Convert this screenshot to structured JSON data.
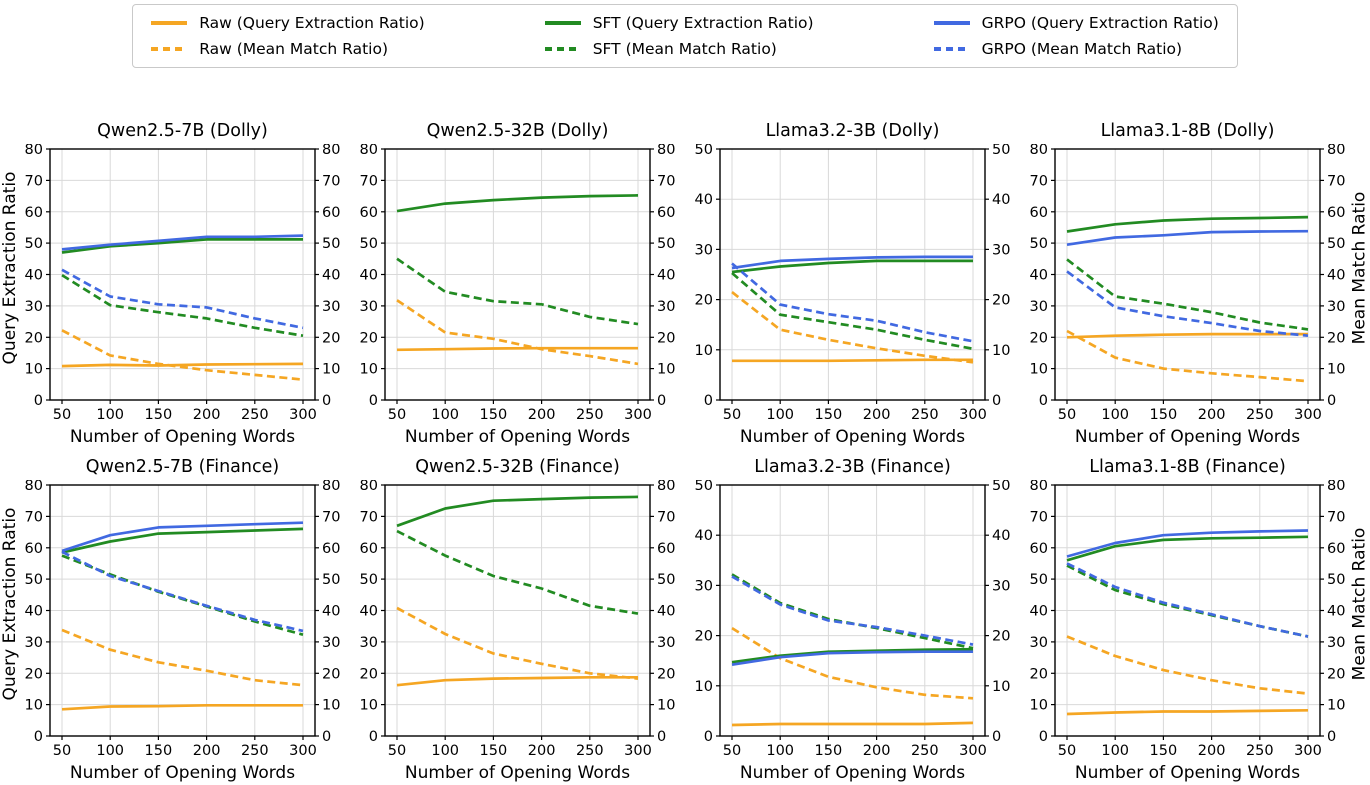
{
  "legend": {
    "entries": [
      {
        "label": "Raw (Query Extraction Ratio)",
        "color": "#F5A623",
        "style": "solid"
      },
      {
        "label": "Raw (Mean Match Ratio)",
        "color": "#F5A623",
        "style": "dashed"
      },
      {
        "label": "SFT (Query Extraction Ratio)",
        "color": "#228B22",
        "style": "solid"
      },
      {
        "label": "SFT (Mean Match Ratio)",
        "color": "#228B22",
        "style": "dashed"
      },
      {
        "label": "GRPO (Query Extraction Ratio)",
        "color": "#4169E1",
        "style": "solid"
      },
      {
        "label": "GRPO (Mean Match Ratio)",
        "color": "#4169E1",
        "style": "dashed"
      }
    ]
  },
  "colors": {
    "raw": "#F5A623",
    "sft": "#228B22",
    "grpo": "#4169E1"
  },
  "chart_data": [
    {
      "type": "line",
      "title": "Qwen2.5-7B (Dolly)",
      "xlabel": "Number of Opening Words",
      "ylabel_left": "Query Extraction Ratio",
      "x": [
        50,
        100,
        150,
        200,
        250,
        300
      ],
      "xticks": [
        50,
        100,
        150,
        200,
        250,
        300
      ],
      "xlim": [
        37.5,
        312.5
      ],
      "ylim": [
        0,
        80
      ],
      "yticks": [
        0,
        10,
        20,
        30,
        40,
        50,
        60,
        70,
        80
      ],
      "series": [
        {
          "name": "Raw (Query Extraction Ratio)",
          "color": "#F5A623",
          "dash": false,
          "values": [
            10.8,
            11.2,
            11.0,
            11.3,
            11.4,
            11.5
          ]
        },
        {
          "name": "Raw (Mean Match Ratio)",
          "color": "#F5A623",
          "dash": true,
          "values": [
            22.2,
            14.2,
            11.5,
            9.5,
            8.0,
            6.5
          ]
        },
        {
          "name": "SFT (Query Extraction Ratio)",
          "color": "#228B22",
          "dash": false,
          "values": [
            47.0,
            49.0,
            50.0,
            51.2,
            51.2,
            51.2
          ]
        },
        {
          "name": "SFT (Mean Match Ratio)",
          "color": "#228B22",
          "dash": true,
          "values": [
            39.8,
            30.2,
            28.0,
            26.0,
            23.0,
            20.5
          ]
        },
        {
          "name": "GRPO (Query Extraction Ratio)",
          "color": "#4169E1",
          "dash": false,
          "values": [
            48.0,
            49.5,
            50.7,
            52.0,
            52.0,
            52.4
          ]
        },
        {
          "name": "GRPO (Mean Match Ratio)",
          "color": "#4169E1",
          "dash": true,
          "values": [
            41.5,
            33.0,
            30.5,
            29.5,
            26.0,
            23.0
          ]
        }
      ]
    },
    {
      "type": "line",
      "title": "Qwen2.5-32B (Dolly)",
      "xlabel": "Number of Opening Words",
      "x": [
        50,
        100,
        150,
        200,
        250,
        300
      ],
      "xticks": [
        50,
        100,
        150,
        200,
        250,
        300
      ],
      "xlim": [
        37.5,
        312.5
      ],
      "ylim": [
        0,
        80
      ],
      "yticks": [
        0,
        10,
        20,
        30,
        40,
        50,
        60,
        70,
        80
      ],
      "series": [
        {
          "name": "Raw (Query Extraction Ratio)",
          "color": "#F5A623",
          "dash": false,
          "values": [
            16.0,
            16.2,
            16.4,
            16.5,
            16.5,
            16.5
          ]
        },
        {
          "name": "Raw (Mean Match Ratio)",
          "color": "#F5A623",
          "dash": true,
          "values": [
            31.8,
            21.5,
            19.5,
            16.2,
            14.0,
            11.5
          ]
        },
        {
          "name": "SFT (Query Extraction Ratio)",
          "color": "#228B22",
          "dash": false,
          "values": [
            60.2,
            62.6,
            63.7,
            64.5,
            65.0,
            65.2
          ]
        },
        {
          "name": "SFT (Mean Match Ratio)",
          "color": "#228B22",
          "dash": true,
          "values": [
            45.0,
            34.5,
            31.5,
            30.5,
            26.5,
            24.2
          ]
        }
      ]
    },
    {
      "type": "line",
      "title": "Llama3.2-3B (Dolly)",
      "xlabel": "Number of Opening Words",
      "x": [
        50,
        100,
        150,
        200,
        250,
        300
      ],
      "xticks": [
        50,
        100,
        150,
        200,
        250,
        300
      ],
      "xlim": [
        37.5,
        312.5
      ],
      "ylim": [
        0,
        50
      ],
      "yticks": [
        0,
        10,
        20,
        30,
        40,
        50
      ],
      "series": [
        {
          "name": "Raw (Query Extraction Ratio)",
          "color": "#F5A623",
          "dash": false,
          "values": [
            7.8,
            7.8,
            7.8,
            7.9,
            8.0,
            8.0
          ]
        },
        {
          "name": "Raw (Mean Match Ratio)",
          "color": "#F5A623",
          "dash": true,
          "values": [
            21.5,
            14.0,
            12.0,
            10.3,
            8.8,
            7.5
          ]
        },
        {
          "name": "SFT (Query Extraction Ratio)",
          "color": "#228B22",
          "dash": false,
          "values": [
            25.5,
            26.6,
            27.3,
            27.7,
            27.7,
            27.7
          ]
        },
        {
          "name": "SFT (Mean Match Ratio)",
          "color": "#228B22",
          "dash": true,
          "values": [
            25.3,
            17.0,
            15.5,
            14.0,
            12.0,
            10.2
          ]
        },
        {
          "name": "GRPO (Query Extraction Ratio)",
          "color": "#4169E1",
          "dash": false,
          "values": [
            26.3,
            27.7,
            28.1,
            28.4,
            28.5,
            28.5
          ]
        },
        {
          "name": "GRPO (Mean Match Ratio)",
          "color": "#4169E1",
          "dash": true,
          "values": [
            27.2,
            19.0,
            17.1,
            15.8,
            13.5,
            11.7
          ]
        }
      ]
    },
    {
      "type": "line",
      "title": "Llama3.1-8B (Dolly)",
      "xlabel": "Number of Opening Words",
      "ylabel_right": "Mean Match Ratio",
      "x": [
        50,
        100,
        150,
        200,
        250,
        300
      ],
      "xticks": [
        50,
        100,
        150,
        200,
        250,
        300
      ],
      "xlim": [
        37.5,
        312.5
      ],
      "ylim": [
        0,
        80
      ],
      "yticks": [
        0,
        10,
        20,
        30,
        40,
        50,
        60,
        70,
        80
      ],
      "series": [
        {
          "name": "Raw (Query Extraction Ratio)",
          "color": "#F5A623",
          "dash": false,
          "values": [
            20.0,
            20.5,
            20.8,
            21.0,
            21.0,
            21.0
          ]
        },
        {
          "name": "Raw (Mean Match Ratio)",
          "color": "#F5A623",
          "dash": true,
          "values": [
            22.0,
            13.5,
            10.0,
            8.5,
            7.3,
            6.0
          ]
        },
        {
          "name": "SFT (Query Extraction Ratio)",
          "color": "#228B22",
          "dash": false,
          "values": [
            53.7,
            56.0,
            57.2,
            57.8,
            58.0,
            58.3
          ]
        },
        {
          "name": "SFT (Mean Match Ratio)",
          "color": "#228B22",
          "dash": true,
          "values": [
            44.8,
            33.0,
            30.7,
            28.0,
            24.7,
            22.5
          ]
        },
        {
          "name": "GRPO (Query Extraction Ratio)",
          "color": "#4169E1",
          "dash": false,
          "values": [
            49.5,
            51.8,
            52.5,
            53.5,
            53.7,
            53.8
          ]
        },
        {
          "name": "GRPO (Mean Match Ratio)",
          "color": "#4169E1",
          "dash": true,
          "values": [
            41.0,
            29.5,
            26.7,
            24.5,
            22.0,
            20.5
          ]
        }
      ]
    },
    {
      "type": "line",
      "title": "Qwen2.5-7B (Finance)",
      "xlabel": "Number of Opening Words",
      "ylabel_left": "Query Extraction Ratio",
      "x": [
        50,
        100,
        150,
        200,
        250,
        300
      ],
      "xticks": [
        50,
        100,
        150,
        200,
        250,
        300
      ],
      "xlim": [
        37.5,
        312.5
      ],
      "ylim": [
        0,
        80
      ],
      "yticks": [
        0,
        10,
        20,
        30,
        40,
        50,
        60,
        70,
        80
      ],
      "series": [
        {
          "name": "Raw (Query Extraction Ratio)",
          "color": "#F5A623",
          "dash": false,
          "values": [
            8.5,
            9.4,
            9.5,
            9.8,
            9.8,
            9.8
          ]
        },
        {
          "name": "Raw (Mean Match Ratio)",
          "color": "#F5A623",
          "dash": true,
          "values": [
            33.8,
            27.5,
            23.5,
            20.8,
            17.8,
            16.2
          ]
        },
        {
          "name": "SFT (Query Extraction Ratio)",
          "color": "#228B22",
          "dash": false,
          "values": [
            58.5,
            62.0,
            64.5,
            65.0,
            65.5,
            66.0
          ]
        },
        {
          "name": "SFT (Mean Match Ratio)",
          "color": "#228B22",
          "dash": true,
          "values": [
            57.5,
            51.5,
            46.0,
            41.3,
            36.5,
            32.3
          ]
        },
        {
          "name": "GRPO (Query Extraction Ratio)",
          "color": "#4169E1",
          "dash": false,
          "values": [
            59.0,
            64.0,
            66.5,
            67.0,
            67.5,
            68.0
          ]
        },
        {
          "name": "GRPO (Mean Match Ratio)",
          "color": "#4169E1",
          "dash": true,
          "values": [
            58.7,
            51.0,
            46.2,
            41.5,
            37.0,
            33.5
          ]
        }
      ]
    },
    {
      "type": "line",
      "title": "Qwen2.5-32B (Finance)",
      "xlabel": "Number of Opening Words",
      "x": [
        50,
        100,
        150,
        200,
        250,
        300
      ],
      "xticks": [
        50,
        100,
        150,
        200,
        250,
        300
      ],
      "xlim": [
        37.5,
        312.5
      ],
      "ylim": [
        0,
        80
      ],
      "yticks": [
        0,
        10,
        20,
        30,
        40,
        50,
        60,
        70,
        80
      ],
      "series": [
        {
          "name": "Raw (Query Extraction Ratio)",
          "color": "#F5A623",
          "dash": false,
          "values": [
            16.2,
            17.8,
            18.3,
            18.5,
            18.7,
            18.7
          ]
        },
        {
          "name": "Raw (Mean Match Ratio)",
          "color": "#F5A623",
          "dash": true,
          "values": [
            40.8,
            32.5,
            26.3,
            23.0,
            20.0,
            18.3
          ]
        },
        {
          "name": "SFT (Query Extraction Ratio)",
          "color": "#228B22",
          "dash": false,
          "values": [
            67.0,
            72.5,
            75.0,
            75.5,
            76.0,
            76.2
          ]
        },
        {
          "name": "SFT (Mean Match Ratio)",
          "color": "#228B22",
          "dash": true,
          "values": [
            65.3,
            57.5,
            51.0,
            47.0,
            41.5,
            39.0
          ]
        }
      ]
    },
    {
      "type": "line",
      "title": "Llama3.2-3B (Finance)",
      "xlabel": "Number of Opening Words",
      "x": [
        50,
        100,
        150,
        200,
        250,
        300
      ],
      "xticks": [
        50,
        100,
        150,
        200,
        250,
        300
      ],
      "xlim": [
        37.5,
        312.5
      ],
      "ylim": [
        0,
        50
      ],
      "yticks": [
        0,
        10,
        20,
        30,
        40,
        50
      ],
      "series": [
        {
          "name": "Raw (Query Extraction Ratio)",
          "color": "#F5A623",
          "dash": false,
          "values": [
            2.2,
            2.4,
            2.4,
            2.4,
            2.4,
            2.6
          ]
        },
        {
          "name": "Raw (Mean Match Ratio)",
          "color": "#F5A623",
          "dash": true,
          "values": [
            21.5,
            15.5,
            11.8,
            9.7,
            8.2,
            7.5
          ]
        },
        {
          "name": "SFT (Query Extraction Ratio)",
          "color": "#228B22",
          "dash": false,
          "values": [
            14.7,
            16.0,
            16.8,
            17.0,
            17.2,
            17.3
          ]
        },
        {
          "name": "SFT (Mean Match Ratio)",
          "color": "#228B22",
          "dash": true,
          "values": [
            32.2,
            26.5,
            23.3,
            21.5,
            19.5,
            17.5
          ]
        },
        {
          "name": "GRPO (Query Extraction Ratio)",
          "color": "#4169E1",
          "dash": false,
          "values": [
            14.2,
            15.7,
            16.5,
            16.7,
            16.8,
            16.8
          ]
        },
        {
          "name": "GRPO (Mean Match Ratio)",
          "color": "#4169E1",
          "dash": true,
          "values": [
            31.8,
            26.2,
            23.0,
            21.7,
            20.0,
            18.2
          ]
        }
      ]
    },
    {
      "type": "line",
      "title": "Llama3.1-8B (Finance)",
      "xlabel": "Number of Opening Words",
      "ylabel_right": "Mean Match Ratio",
      "x": [
        50,
        100,
        150,
        200,
        250,
        300
      ],
      "xticks": [
        50,
        100,
        150,
        200,
        250,
        300
      ],
      "xlim": [
        37.5,
        312.5
      ],
      "ylim": [
        0,
        80
      ],
      "yticks": [
        0,
        10,
        20,
        30,
        40,
        50,
        60,
        70,
        80
      ],
      "series": [
        {
          "name": "Raw (Query Extraction Ratio)",
          "color": "#F5A623",
          "dash": false,
          "values": [
            7.0,
            7.5,
            7.8,
            7.8,
            8.0,
            8.2
          ]
        },
        {
          "name": "Raw (Mean Match Ratio)",
          "color": "#F5A623",
          "dash": true,
          "values": [
            31.7,
            25.5,
            21.0,
            17.8,
            15.2,
            13.5
          ]
        },
        {
          "name": "SFT (Query Extraction Ratio)",
          "color": "#228B22",
          "dash": false,
          "values": [
            56.0,
            60.5,
            62.5,
            63.0,
            63.2,
            63.5
          ]
        },
        {
          "name": "SFT (Mean Match Ratio)",
          "color": "#228B22",
          "dash": true,
          "values": [
            54.3,
            46.5,
            42.0,
            38.5,
            35.0,
            31.7
          ]
        },
        {
          "name": "GRPO (Query Extraction Ratio)",
          "color": "#4169E1",
          "dash": false,
          "values": [
            57.2,
            61.5,
            64.0,
            64.8,
            65.2,
            65.5
          ]
        },
        {
          "name": "GRPO (Mean Match Ratio)",
          "color": "#4169E1",
          "dash": true,
          "values": [
            55.0,
            47.5,
            42.5,
            38.8,
            35.0,
            31.7
          ]
        }
      ]
    }
  ]
}
